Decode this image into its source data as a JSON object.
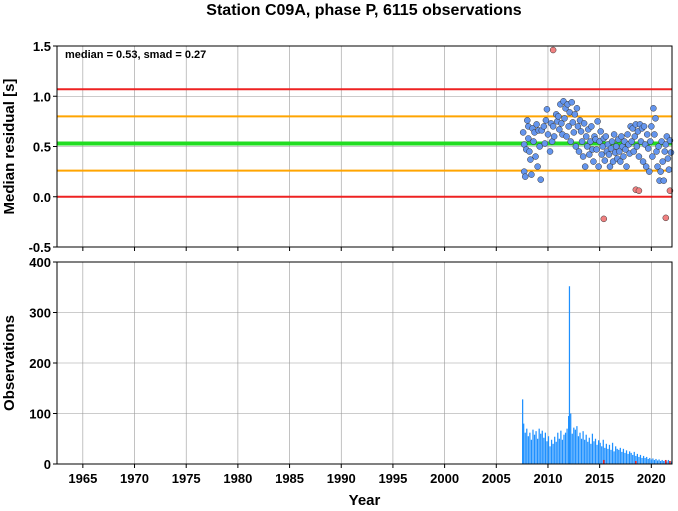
{
  "chart_data": [
    {
      "type": "scatter",
      "title": "Station C09A, phase P, 6115 observations",
      "ylabel": "Median residual [s]",
      "annotation": "median = 0.53, smad = 0.27",
      "xlim": [
        1962.5,
        2022.0
      ],
      "ylim": [
        -0.5,
        1.5
      ],
      "yticks": [
        "-0.5",
        "0.0",
        "0.5",
        "1.0",
        "1.5"
      ],
      "xticks": [
        1965,
        1970,
        1975,
        1980,
        1985,
        1990,
        1995,
        2000,
        2005,
        2010,
        2015,
        2020
      ],
      "grid": true,
      "reference_lines": [
        {
          "y": 1.07,
          "color": "#ee2222",
          "role": "median+2smad"
        },
        {
          "y": 0.8,
          "color": "#ffa500",
          "role": "median+1smad"
        },
        {
          "y": 0.53,
          "color": "#22dd22",
          "role": "median"
        },
        {
          "y": 0.26,
          "color": "#ffa500",
          "role": "median-1smad"
        },
        {
          "y": 0.0,
          "color": "#ee2222",
          "role": "median-2smad"
        }
      ],
      "series": [
        {
          "kind": "normal",
          "color": "#6495ed",
          "points": [
            [
              2007.6,
              0.64
            ],
            [
              2007.7,
              0.25
            ],
            [
              2007.7,
              0.52
            ],
            [
              2007.8,
              0.2
            ],
            [
              2007.9,
              0.47
            ],
            [
              2008.0,
              0.76
            ],
            [
              2008.1,
              0.7
            ],
            [
              2008.1,
              0.58
            ],
            [
              2008.2,
              0.45
            ],
            [
              2008.3,
              0.37
            ],
            [
              2008.4,
              0.22
            ],
            [
              2008.5,
              0.68
            ],
            [
              2008.6,
              0.55
            ],
            [
              2008.7,
              0.64
            ],
            [
              2008.8,
              0.4
            ],
            [
              2008.9,
              0.72
            ],
            [
              2009.0,
              0.3
            ],
            [
              2009.1,
              0.66
            ],
            [
              2009.2,
              0.5
            ],
            [
              2009.3,
              0.17
            ],
            [
              2009.4,
              0.66
            ],
            [
              2009.6,
              0.7
            ],
            [
              2009.7,
              0.53
            ],
            [
              2009.8,
              0.76
            ],
            [
              2009.9,
              0.87
            ],
            [
              2010.0,
              0.62
            ],
            [
              2010.2,
              0.45
            ],
            [
              2010.3,
              0.73
            ],
            [
              2010.4,
              0.55
            ],
            [
              2010.5,
              0.7
            ],
            [
              2010.6,
              0.6
            ],
            [
              2010.8,
              0.82
            ],
            [
              2010.9,
              0.75
            ],
            [
              2011.0,
              0.8
            ],
            [
              2011.1,
              0.67
            ],
            [
              2011.2,
              0.92
            ],
            [
              2011.3,
              0.73
            ],
            [
              2011.4,
              0.62
            ],
            [
              2011.5,
              0.95
            ],
            [
              2011.6,
              0.78
            ],
            [
              2011.7,
              0.88
            ],
            [
              2011.8,
              0.6
            ],
            [
              2011.9,
              0.92
            ],
            [
              2012.0,
              0.7
            ],
            [
              2012.1,
              0.84
            ],
            [
              2012.2,
              0.55
            ],
            [
              2012.3,
              0.94
            ],
            [
              2012.4,
              0.74
            ],
            [
              2012.5,
              0.64
            ],
            [
              2012.6,
              0.82
            ],
            [
              2012.7,
              0.5
            ],
            [
              2012.8,
              0.88
            ],
            [
              2012.9,
              0.7
            ],
            [
              2013.0,
              0.45
            ],
            [
              2013.1,
              0.76
            ],
            [
              2013.2,
              0.65
            ],
            [
              2013.3,
              0.55
            ],
            [
              2013.4,
              0.4
            ],
            [
              2013.5,
              0.73
            ],
            [
              2013.6,
              0.3
            ],
            [
              2013.7,
              0.6
            ],
            [
              2013.8,
              0.5
            ],
            [
              2013.9,
              0.67
            ],
            [
              2014.0,
              0.42
            ],
            [
              2014.1,
              0.55
            ],
            [
              2014.2,
              0.7
            ],
            [
              2014.3,
              0.47
            ],
            [
              2014.4,
              0.35
            ],
            [
              2014.5,
              0.6
            ],
            [
              2014.6,
              0.57
            ],
            [
              2014.7,
              0.47
            ],
            [
              2014.8,
              0.75
            ],
            [
              2014.9,
              0.3
            ],
            [
              2015.0,
              0.55
            ],
            [
              2015.1,
              0.65
            ],
            [
              2015.2,
              0.42
            ],
            [
              2015.3,
              0.5
            ],
            [
              2015.4,
              0.58
            ],
            [
              2015.5,
              0.36
            ],
            [
              2015.6,
              0.6
            ],
            [
              2015.7,
              0.45
            ],
            [
              2015.8,
              0.52
            ],
            [
              2015.9,
              0.42
            ],
            [
              2016.0,
              0.3
            ],
            [
              2016.1,
              0.48
            ],
            [
              2016.2,
              0.55
            ],
            [
              2016.3,
              0.35
            ],
            [
              2016.4,
              0.62
            ],
            [
              2016.5,
              0.44
            ],
            [
              2016.6,
              0.5
            ],
            [
              2016.7,
              0.38
            ],
            [
              2016.8,
              0.57
            ],
            [
              2016.9,
              0.45
            ],
            [
              2017.0,
              0.35
            ],
            [
              2017.1,
              0.6
            ],
            [
              2017.2,
              0.5
            ],
            [
              2017.3,
              0.4
            ],
            [
              2017.4,
              0.55
            ],
            [
              2017.5,
              0.47
            ],
            [
              2017.6,
              0.3
            ],
            [
              2017.7,
              0.62
            ],
            [
              2017.8,
              0.52
            ],
            [
              2017.9,
              0.43
            ],
            [
              2018.0,
              0.7
            ],
            [
              2018.1,
              0.55
            ],
            [
              2018.2,
              0.68
            ],
            [
              2018.3,
              0.45
            ],
            [
              2018.4,
              0.6
            ],
            [
              2018.5,
              0.72
            ],
            [
              2018.6,
              0.5
            ],
            [
              2018.7,
              0.65
            ],
            [
              2018.8,
              0.4
            ],
            [
              2018.9,
              0.72
            ],
            [
              2019.0,
              0.55
            ],
            [
              2019.1,
              0.68
            ],
            [
              2019.2,
              0.35
            ],
            [
              2019.3,
              0.7
            ],
            [
              2019.4,
              0.52
            ],
            [
              2019.5,
              0.3
            ],
            [
              2019.6,
              0.62
            ],
            [
              2019.7,
              0.48
            ],
            [
              2019.8,
              0.25
            ],
            [
              2019.9,
              0.55
            ],
            [
              2020.0,
              0.7
            ],
            [
              2020.1,
              0.4
            ],
            [
              2020.2,
              0.88
            ],
            [
              2020.3,
              0.62
            ],
            [
              2020.4,
              0.78
            ],
            [
              2020.5,
              0.45
            ],
            [
              2020.6,
              0.3
            ],
            [
              2020.7,
              0.5
            ],
            [
              2020.8,
              0.16
            ],
            [
              2020.9,
              0.25
            ],
            [
              2021.0,
              0.55
            ],
            [
              2021.1,
              0.35
            ],
            [
              2021.2,
              0.16
            ],
            [
              2021.3,
              0.45
            ],
            [
              2021.4,
              0.52
            ],
            [
              2021.5,
              0.6
            ],
            [
              2021.6,
              0.38
            ],
            [
              2021.7,
              0.27
            ],
            [
              2021.8,
              0.56
            ],
            [
              2021.9,
              0.44
            ]
          ]
        },
        {
          "kind": "outlier",
          "color": "#f08080",
          "points": [
            [
              2010.5,
              1.46
            ],
            [
              2015.4,
              -0.22
            ],
            [
              2018.5,
              0.07
            ],
            [
              2018.8,
              0.06
            ],
            [
              2021.4,
              -0.21
            ],
            [
              2021.8,
              0.06
            ]
          ]
        }
      ]
    },
    {
      "type": "bar",
      "xlabel": "Year",
      "ylabel": "Observations",
      "xlim": [
        1962.5,
        2022.0
      ],
      "ylim": [
        0,
        400
      ],
      "yticks": [
        "0",
        "100",
        "200",
        "300",
        "400"
      ],
      "xticks": [
        1965,
        1970,
        1975,
        1980,
        1985,
        1990,
        1995,
        2000,
        2005,
        2010,
        2015,
        2020
      ],
      "grid": true,
      "color": "#1e90ff",
      "outlier_color": "#ee2222",
      "bars": [
        [
          2007.55,
          128
        ],
        [
          2007.65,
          80
        ],
        [
          2007.8,
          62
        ],
        [
          2007.95,
          70
        ],
        [
          2008.1,
          55
        ],
        [
          2008.25,
          62
        ],
        [
          2008.4,
          48
        ],
        [
          2008.55,
          68
        ],
        [
          2008.7,
          58
        ],
        [
          2008.85,
          65
        ],
        [
          2009.0,
          50
        ],
        [
          2009.15,
          70
        ],
        [
          2009.3,
          60
        ],
        [
          2009.45,
          66
        ],
        [
          2009.6,
          52
        ],
        [
          2009.75,
          62
        ],
        [
          2009.9,
          45
        ],
        [
          2010.05,
          55
        ],
        [
          2010.2,
          35
        ],
        [
          2010.35,
          48
        ],
        [
          2010.5,
          40
        ],
        [
          2010.65,
          54
        ],
        [
          2010.8,
          44
        ],
        [
          2010.95,
          62
        ],
        [
          2011.1,
          50
        ],
        [
          2011.25,
          66
        ],
        [
          2011.4,
          48
        ],
        [
          2011.55,
          58
        ],
        [
          2011.7,
          62
        ],
        [
          2011.85,
          70
        ],
        [
          2012.0,
          95
        ],
        [
          2012.08,
          352
        ],
        [
          2012.2,
          100
        ],
        [
          2012.35,
          60
        ],
        [
          2012.5,
          72
        ],
        [
          2012.65,
          68
        ],
        [
          2012.8,
          75
        ],
        [
          2012.95,
          55
        ],
        [
          2013.1,
          62
        ],
        [
          2013.25,
          50
        ],
        [
          2013.4,
          65
        ],
        [
          2013.55,
          48
        ],
        [
          2013.7,
          58
        ],
        [
          2013.85,
          44
        ],
        [
          2014.0,
          52
        ],
        [
          2014.15,
          40
        ],
        [
          2014.3,
          60
        ],
        [
          2014.45,
          45
        ],
        [
          2014.6,
          50
        ],
        [
          2014.75,
          38
        ],
        [
          2014.9,
          47
        ],
        [
          2015.05,
          42
        ],
        [
          2015.2,
          35
        ],
        [
          2015.35,
          48
        ],
        [
          2015.5,
          32
        ],
        [
          2015.65,
          40
        ],
        [
          2015.8,
          30
        ],
        [
          2015.95,
          38
        ],
        [
          2016.1,
          28
        ],
        [
          2016.25,
          42
        ],
        [
          2016.4,
          25
        ],
        [
          2016.55,
          35
        ],
        [
          2016.7,
          30
        ],
        [
          2016.85,
          28
        ],
        [
          2017.0,
          32
        ],
        [
          2017.15,
          24
        ],
        [
          2017.3,
          30
        ],
        [
          2017.45,
          22
        ],
        [
          2017.6,
          27
        ],
        [
          2017.75,
          20
        ],
        [
          2017.9,
          25
        ],
        [
          2018.05,
          22
        ],
        [
          2018.2,
          18
        ],
        [
          2018.35,
          24
        ],
        [
          2018.5,
          16
        ],
        [
          2018.65,
          20
        ],
        [
          2018.8,
          14
        ],
        [
          2018.95,
          18
        ],
        [
          2019.1,
          12
        ],
        [
          2019.25,
          16
        ],
        [
          2019.4,
          12
        ],
        [
          2019.55,
          14
        ],
        [
          2019.7,
          10
        ],
        [
          2019.85,
          12
        ],
        [
          2020.0,
          9
        ],
        [
          2020.15,
          11
        ],
        [
          2020.3,
          8
        ],
        [
          2020.45,
          10
        ],
        [
          2020.6,
          7
        ],
        [
          2020.75,
          9
        ],
        [
          2020.9,
          6
        ],
        [
          2021.05,
          8
        ],
        [
          2021.2,
          6
        ],
        [
          2021.35,
          7
        ],
        [
          2021.5,
          5
        ],
        [
          2021.65,
          8
        ],
        [
          2021.8,
          6
        ],
        [
          2021.95,
          5
        ]
      ],
      "outlier_bars": [
        [
          2015.4,
          8
        ],
        [
          2018.5,
          6
        ],
        [
          2021.4,
          8
        ],
        [
          2021.8,
          6
        ]
      ]
    }
  ]
}
